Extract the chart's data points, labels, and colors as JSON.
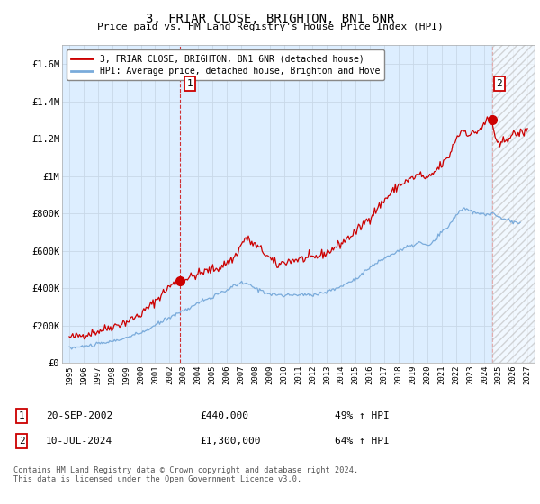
{
  "title": "3, FRIAR CLOSE, BRIGHTON, BN1 6NR",
  "subtitle": "Price paid vs. HM Land Registry's House Price Index (HPI)",
  "legend_line1": "3, FRIAR CLOSE, BRIGHTON, BN1 6NR (detached house)",
  "legend_line2": "HPI: Average price, detached house, Brighton and Hove",
  "annotation1_label": "1",
  "annotation1_date": "20-SEP-2002",
  "annotation1_price": "£440,000",
  "annotation1_hpi": "49% ↑ HPI",
  "annotation2_label": "2",
  "annotation2_date": "10-JUL-2024",
  "annotation2_price": "£1,300,000",
  "annotation2_hpi": "64% ↑ HPI",
  "sale1_x": 2002.72,
  "sale1_y": 440000,
  "sale2_x": 2024.53,
  "sale2_y": 1300000,
  "dashed_line1_x": 2002.72,
  "dashed_line2_x": 2024.53,
  "ylim": [
    0,
    1700000
  ],
  "xlim": [
    1994.5,
    2027.5
  ],
  "yticks": [
    0,
    200000,
    400000,
    600000,
    800000,
    1000000,
    1200000,
    1400000,
    1600000
  ],
  "ytick_labels": [
    "£0",
    "£200K",
    "£400K",
    "£600K",
    "£800K",
    "£1M",
    "£1.2M",
    "£1.4M",
    "£1.6M"
  ],
  "xticks": [
    1995,
    1996,
    1997,
    1998,
    1999,
    2000,
    2001,
    2002,
    2003,
    2004,
    2005,
    2006,
    2007,
    2008,
    2009,
    2010,
    2011,
    2012,
    2013,
    2014,
    2015,
    2016,
    2017,
    2018,
    2019,
    2020,
    2021,
    2022,
    2023,
    2024,
    2025,
    2026,
    2027
  ],
  "red_line_color": "#cc0000",
  "blue_line_color": "#7aabdb",
  "background_color": "#ffffff",
  "plot_bg_color": "#ddeeff",
  "grid_color": "#c8d8e8",
  "footer_text": "Contains HM Land Registry data © Crown copyright and database right 2024.\nThis data is licensed under the Open Government Licence v3.0.",
  "hatch_start_x": 2024.53,
  "hatch_end_x": 2027.5
}
